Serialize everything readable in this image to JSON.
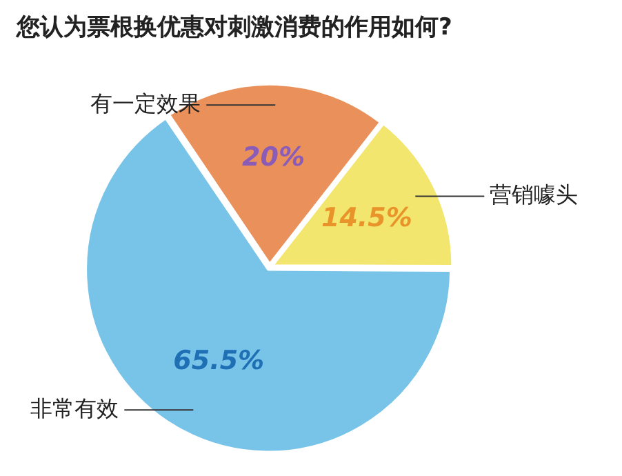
{
  "chart_data": {
    "type": "pie",
    "title": "您认为票根换优惠对刺激消费的作用如何?",
    "categories": [
      "有一定效果",
      "营销噱头",
      "非常有效"
    ],
    "values": [
      20,
      14.5,
      65.5
    ],
    "value_labels": [
      "20%",
      "14.5%",
      "65.5%"
    ],
    "colors": [
      "#ea915b",
      "#f2e66f",
      "#78c4e8"
    ],
    "legend": false
  }
}
